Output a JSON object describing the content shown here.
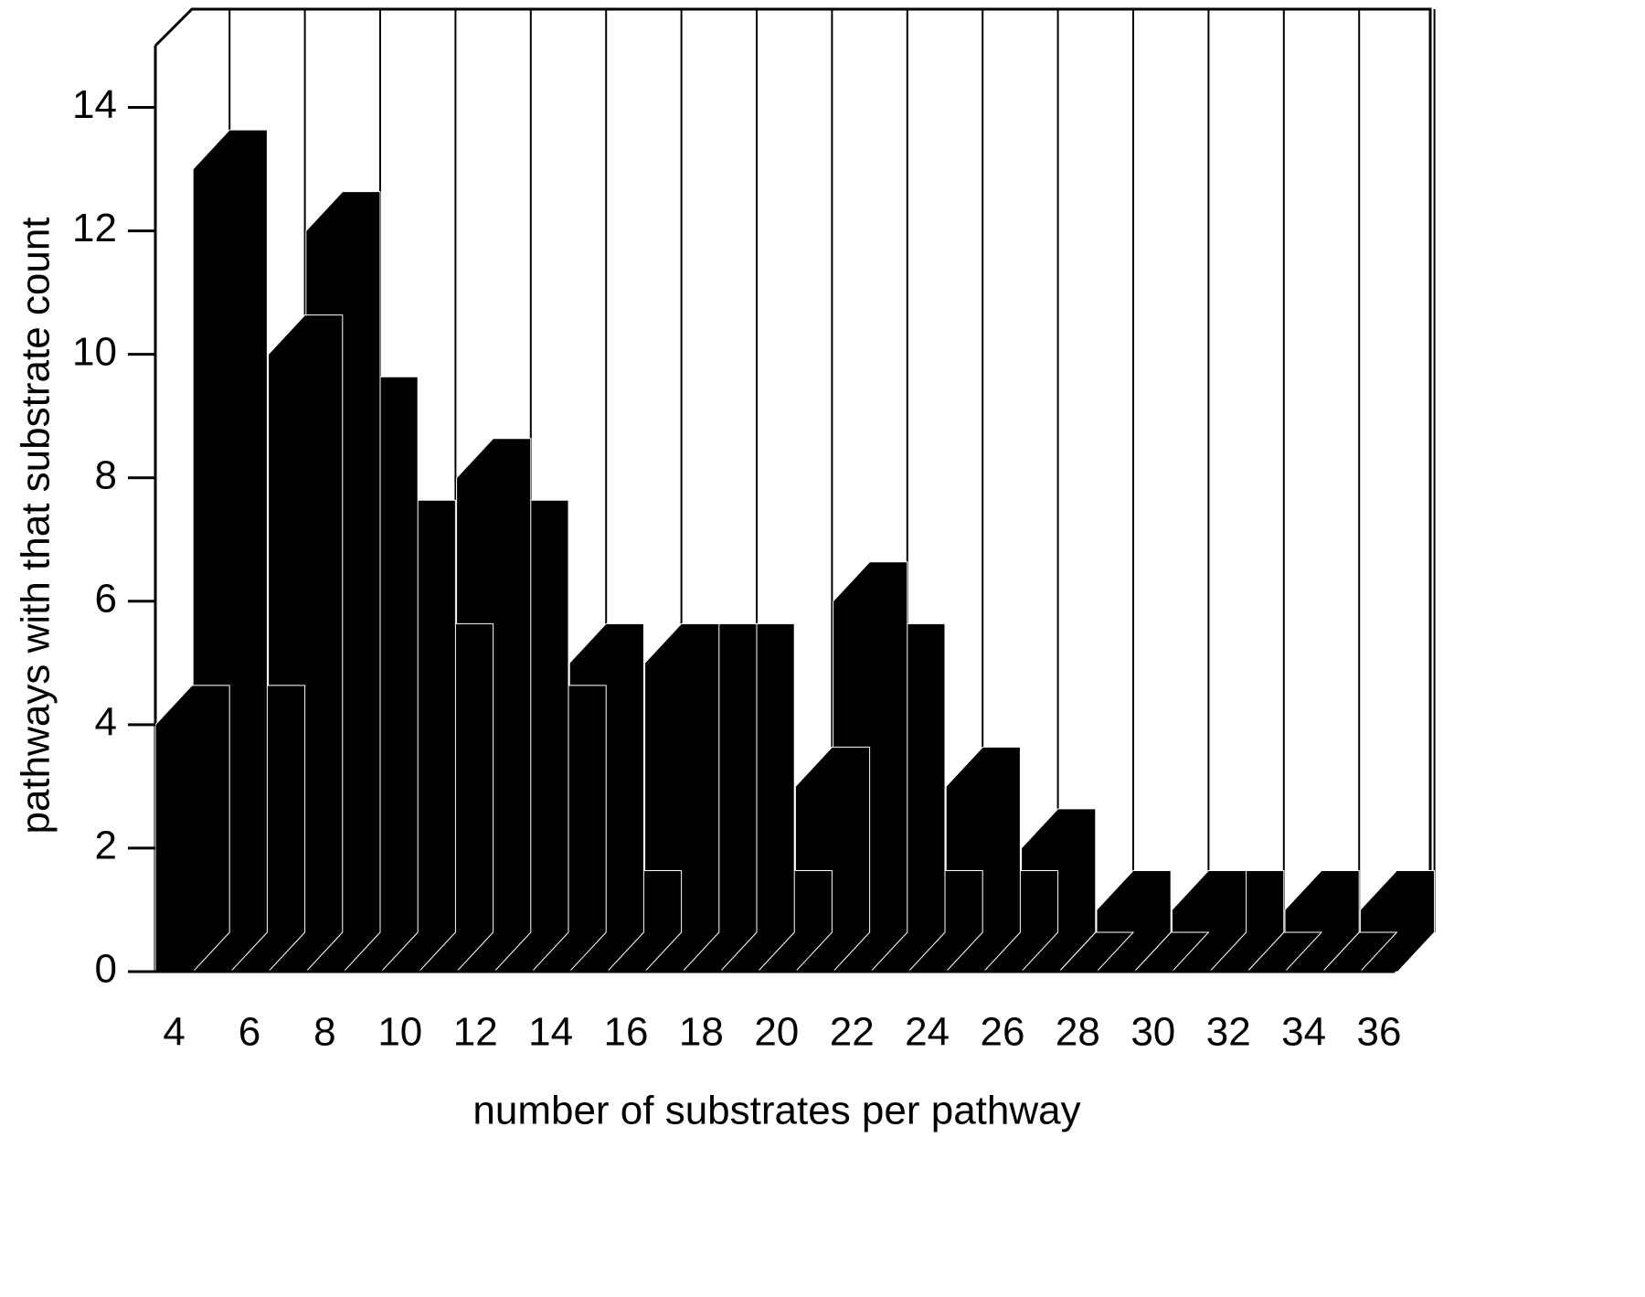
{
  "chart_data": {
    "type": "bar",
    "xlabel": "number of substrates per pathway",
    "ylabel": "pathways with that substrate count",
    "categories": [
      "4",
      null,
      "6",
      null,
      "8",
      null,
      "10",
      null,
      "12",
      null,
      "14",
      null,
      "16",
      null,
      "18",
      null,
      "20",
      null,
      "22",
      null,
      "24",
      null,
      "26",
      null,
      "28",
      null,
      "30",
      null,
      "32",
      null,
      "34",
      null,
      "36"
    ],
    "values": [
      4,
      13,
      4,
      10,
      12,
      9,
      7,
      5,
      8,
      7,
      4,
      5,
      1,
      5,
      5,
      5,
      1,
      3,
      6,
      5,
      1,
      3,
      1,
      2,
      0,
      1,
      0,
      1,
      1,
      0,
      1,
      0,
      1
    ],
    "color": "#000000",
    "ylim": [
      0,
      15
    ],
    "yticks": [
      0,
      2,
      4,
      6,
      8,
      10,
      12,
      14
    ]
  }
}
